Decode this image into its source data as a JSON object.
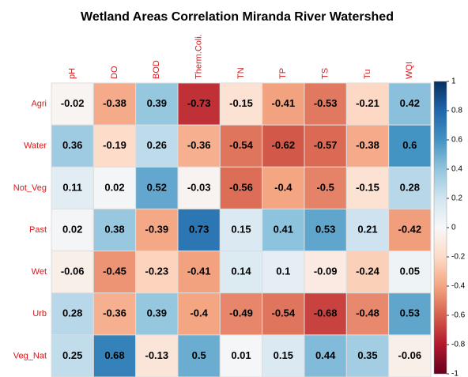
{
  "chart_data": {
    "type": "heatmap",
    "title": "Wetland Areas Correlation Miranda River Watershed",
    "columns": [
      "pH",
      "DO",
      "BOD",
      "Therm.Coli.",
      "TN",
      "TP",
      "TS",
      "Tu",
      "WQI"
    ],
    "rows": [
      "Agri",
      "Water",
      "Not_Veg",
      "Past",
      "Wet",
      "Urb",
      "Veg_Nat"
    ],
    "values": [
      [
        -0.02,
        -0.38,
        0.39,
        -0.73,
        -0.15,
        -0.41,
        -0.53,
        -0.21,
        0.42
      ],
      [
        0.36,
        -0.19,
        0.26,
        -0.36,
        -0.54,
        -0.62,
        -0.57,
        -0.38,
        0.6
      ],
      [
        0.11,
        0.02,
        0.52,
        -0.03,
        -0.56,
        -0.4,
        -0.5,
        -0.15,
        0.28
      ],
      [
        0.02,
        0.38,
        -0.39,
        0.73,
        0.15,
        0.41,
        0.53,
        0.21,
        -0.42
      ],
      [
        -0.06,
        -0.45,
        -0.23,
        -0.41,
        0.14,
        0.1,
        -0.09,
        -0.24,
        0.05
      ],
      [
        0.28,
        -0.36,
        0.39,
        -0.4,
        -0.49,
        -0.54,
        -0.68,
        -0.48,
        0.53
      ],
      [
        0.25,
        0.68,
        -0.13,
        0.5,
        0.01,
        0.15,
        0.44,
        0.35,
        -0.06
      ]
    ],
    "zlim": [
      -1,
      1
    ],
    "zticks": [
      1,
      0.8,
      0.6,
      0.4,
      0.2,
      0,
      -0.2,
      -0.4,
      -0.6,
      -0.8,
      -1
    ],
    "colorscale": [
      "#67001f",
      "#b2182b",
      "#d6604d",
      "#f4a582",
      "#fddbc7",
      "#f7f7f7",
      "#d1e5f0",
      "#92c5de",
      "#4393c3",
      "#2166ac",
      "#053061"
    ],
    "label_color": "#d7191c"
  }
}
